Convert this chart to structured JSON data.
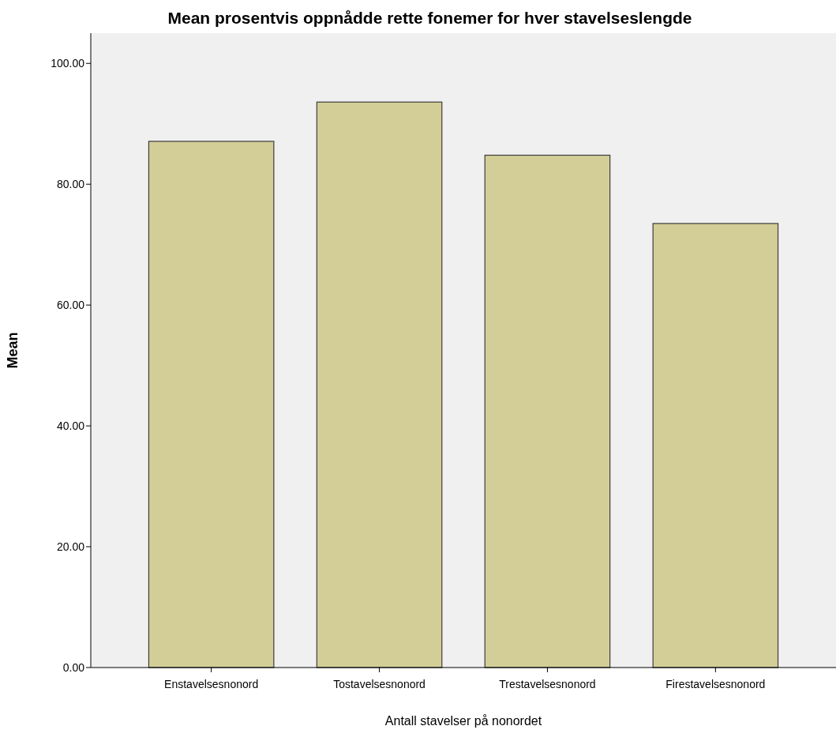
{
  "chart_data": {
    "type": "bar",
    "title": "Mean prosentvis oppnådde rette fonemer for hver stavelseslengde",
    "xlabel": "Antall stavelser på nonordet",
    "ylabel": "Mean",
    "categories": [
      "Enstavelsesnonord",
      "Tostavelsesnonord",
      "Trestavelsesnonord",
      "Firestavelsesnonord"
    ],
    "values": [
      87.1,
      93.6,
      84.8,
      73.5
    ],
    "color": "#d3ce97",
    "ylim": [
      0,
      105
    ],
    "yticks": [
      {
        "value": 0,
        "label": "0.00"
      },
      {
        "value": 20,
        "label": "20.00"
      },
      {
        "value": 40,
        "label": "40.00"
      },
      {
        "value": 60,
        "label": "60.00"
      },
      {
        "value": 80,
        "label": "80.00"
      },
      {
        "value": 100,
        "label": "100.00"
      }
    ]
  }
}
